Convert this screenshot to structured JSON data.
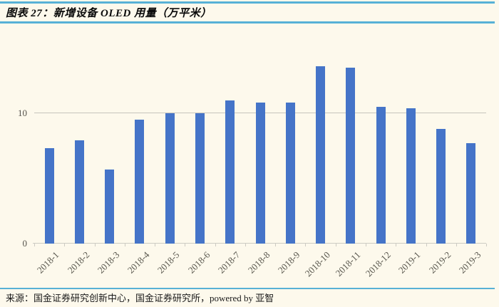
{
  "header": {
    "title": "图表 27：新增设备 OLED 用量（万平米）"
  },
  "footer": {
    "source": "来源：国金证券研究创新中心，国金证券研究所，powered by 亚智"
  },
  "colors": {
    "background": "#FDF9EC",
    "accent_rule": "#57B1D6",
    "bar": "#4574C8",
    "gridline": "#C6C4BC",
    "axis_line": "#CDCBC3",
    "tick_text": "#55534C",
    "title_text": "#0B0B0B"
  },
  "chart_data": {
    "type": "bar",
    "title": "新增设备 OLED 用量（万平米）",
    "categories": [
      "2018-1",
      "2018-2",
      "2018-3",
      "2018-4",
      "2018-5",
      "2018-6",
      "2018-7",
      "2018-8",
      "2018-9",
      "2018-10",
      "2018-11",
      "2018-12",
      "2019-1",
      "2019-2",
      "2019-3"
    ],
    "values": [
      7.3,
      7.9,
      5.7,
      9.5,
      10.0,
      10.0,
      11.0,
      10.8,
      10.8,
      13.6,
      13.5,
      10.5,
      10.4,
      8.8,
      7.7
    ],
    "xlabel": "",
    "ylabel": "",
    "ylim": [
      0,
      15.4
    ],
    "yticks": [
      0,
      10
    ],
    "grid": true,
    "legend": false,
    "xtick_rotation_deg": 45
  }
}
